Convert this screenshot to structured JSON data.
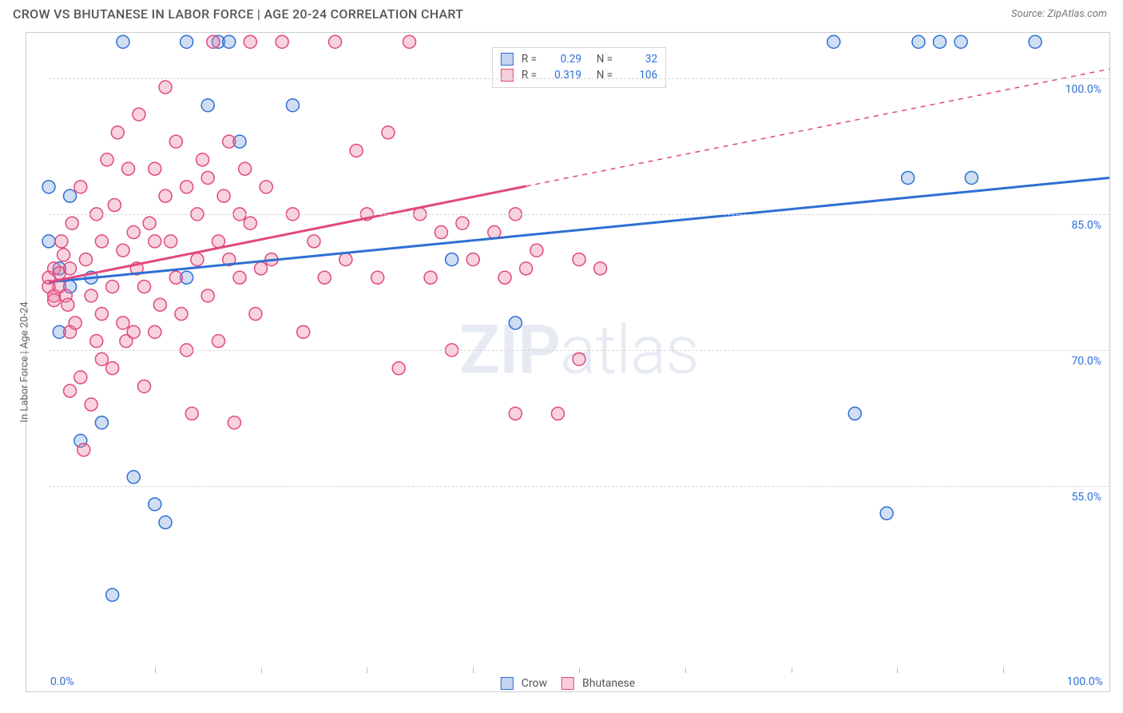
{
  "chart": {
    "type": "scatter",
    "title": "CROW VS BHUTANESE IN LABOR FORCE | AGE 20-24 CORRELATION CHART",
    "source": "Source: ZipAtlas.com",
    "watermark": "ZIPatlas",
    "y_axis_label": "In Labor Force | Age 20-24",
    "xlim": [
      0,
      100
    ],
    "ylim": [
      35,
      105
    ],
    "y_ticks": [
      55.0,
      70.0,
      85.0,
      100.0
    ],
    "x_ticks": [
      0,
      10,
      20,
      30,
      40,
      50,
      60,
      70,
      80,
      90,
      100
    ],
    "x_tick_labels_shown": {
      "left": "0.0%",
      "right": "100.0%"
    },
    "background_color": "#ffffff",
    "grid_color": "#d8d8d8",
    "point_radius": 8,
    "series": [
      {
        "name": "Crow",
        "color_fill": "#78a0dc",
        "color_stroke": "#2f6fd4",
        "R": 0.29,
        "N": 32,
        "trend": {
          "x1": 0,
          "y1": 77.5,
          "x2": 100,
          "y2": 89.0,
          "dash_from": null
        },
        "points": [
          [
            0,
            82
          ],
          [
            0,
            88
          ],
          [
            1,
            79
          ],
          [
            1,
            72
          ],
          [
            2,
            87
          ],
          [
            2,
            77
          ],
          [
            3,
            60
          ],
          [
            4,
            78
          ],
          [
            5,
            62
          ],
          [
            7,
            104
          ],
          [
            8,
            56
          ],
          [
            10,
            53
          ],
          [
            11,
            51
          ],
          [
            13,
            104
          ],
          [
            15,
            97
          ],
          [
            16,
            104
          ],
          [
            17,
            104
          ],
          [
            18,
            93
          ],
          [
            23,
            97
          ],
          [
            38,
            80
          ],
          [
            44,
            73
          ],
          [
            76,
            63
          ],
          [
            79,
            52
          ],
          [
            82,
            104
          ],
          [
            81,
            89
          ],
          [
            84,
            104
          ],
          [
            86,
            104
          ],
          [
            87,
            89
          ],
          [
            93,
            104
          ],
          [
            74,
            104
          ],
          [
            6,
            43
          ],
          [
            13,
            78
          ]
        ]
      },
      {
        "name": "Bhutanese",
        "color_fill": "#eb82a0",
        "color_stroke": "#e04880",
        "R": 0.319,
        "N": 106,
        "trend": {
          "x1": 0,
          "y1": 77.5,
          "x2": 100,
          "y2": 101.0,
          "dash_from": 45
        },
        "points": [
          [
            0,
            77
          ],
          [
            0,
            78
          ],
          [
            0.5,
            76
          ],
          [
            0.5,
            75.5
          ],
          [
            0.5,
            79
          ],
          [
            1,
            78.5
          ],
          [
            1,
            77
          ],
          [
            1.2,
            82
          ],
          [
            1.4,
            80.5
          ],
          [
            1.6,
            76
          ],
          [
            1.8,
            75
          ],
          [
            2,
            65.5
          ],
          [
            2,
            72
          ],
          [
            2,
            79
          ],
          [
            2.2,
            84
          ],
          [
            2.5,
            73
          ],
          [
            3,
            67
          ],
          [
            3,
            88
          ],
          [
            3.3,
            59
          ],
          [
            3.5,
            80
          ],
          [
            4,
            64
          ],
          [
            4,
            76
          ],
          [
            4.5,
            71
          ],
          [
            4.5,
            85
          ],
          [
            5,
            74
          ],
          [
            5,
            69
          ],
          [
            5,
            82
          ],
          [
            5.5,
            91
          ],
          [
            6,
            77
          ],
          [
            6,
            68
          ],
          [
            6.2,
            86
          ],
          [
            6.5,
            94
          ],
          [
            7,
            73
          ],
          [
            7,
            81
          ],
          [
            7.3,
            71
          ],
          [
            7.5,
            90
          ],
          [
            8,
            72
          ],
          [
            8,
            83
          ],
          [
            8.3,
            79
          ],
          [
            8.5,
            96
          ],
          [
            9,
            77
          ],
          [
            9,
            66
          ],
          [
            9.5,
            84
          ],
          [
            10,
            72
          ],
          [
            10,
            90
          ],
          [
            10,
            82
          ],
          [
            10.5,
            75
          ],
          [
            11,
            87
          ],
          [
            11,
            99
          ],
          [
            11.5,
            82
          ],
          [
            12,
            93
          ],
          [
            12,
            78
          ],
          [
            12.5,
            74
          ],
          [
            13,
            88
          ],
          [
            13,
            70
          ],
          [
            13.5,
            63
          ],
          [
            14,
            85
          ],
          [
            14,
            80
          ],
          [
            14.5,
            91
          ],
          [
            15,
            76
          ],
          [
            15,
            89
          ],
          [
            15.5,
            104
          ],
          [
            16,
            82
          ],
          [
            16,
            71
          ],
          [
            16.5,
            87
          ],
          [
            17,
            93
          ],
          [
            17,
            80
          ],
          [
            17.5,
            62
          ],
          [
            18,
            85
          ],
          [
            18,
            78
          ],
          [
            18.5,
            90
          ],
          [
            19,
            104
          ],
          [
            19,
            84
          ],
          [
            19.5,
            74
          ],
          [
            20,
            79
          ],
          [
            20.5,
            88
          ],
          [
            21,
            80
          ],
          [
            22,
            104
          ],
          [
            23,
            85
          ],
          [
            24,
            72
          ],
          [
            25,
            82
          ],
          [
            26,
            78
          ],
          [
            27,
            104
          ],
          [
            28,
            80
          ],
          [
            29,
            92
          ],
          [
            30,
            85
          ],
          [
            31,
            78
          ],
          [
            32,
            94
          ],
          [
            33,
            68
          ],
          [
            34,
            104
          ],
          [
            35,
            85
          ],
          [
            36,
            78
          ],
          [
            37,
            83
          ],
          [
            38,
            70
          ],
          [
            39,
            84
          ],
          [
            40,
            80
          ],
          [
            42,
            83
          ],
          [
            43,
            78
          ],
          [
            44,
            63
          ],
          [
            44,
            85
          ],
          [
            45,
            79
          ],
          [
            46,
            81
          ],
          [
            48,
            63
          ],
          [
            50,
            80
          ],
          [
            50,
            69
          ],
          [
            52,
            79
          ]
        ]
      }
    ],
    "bottom_legend": [
      {
        "label": "Crow",
        "swatch": "blue"
      },
      {
        "label": "Bhutanese",
        "swatch": "pink"
      }
    ]
  }
}
